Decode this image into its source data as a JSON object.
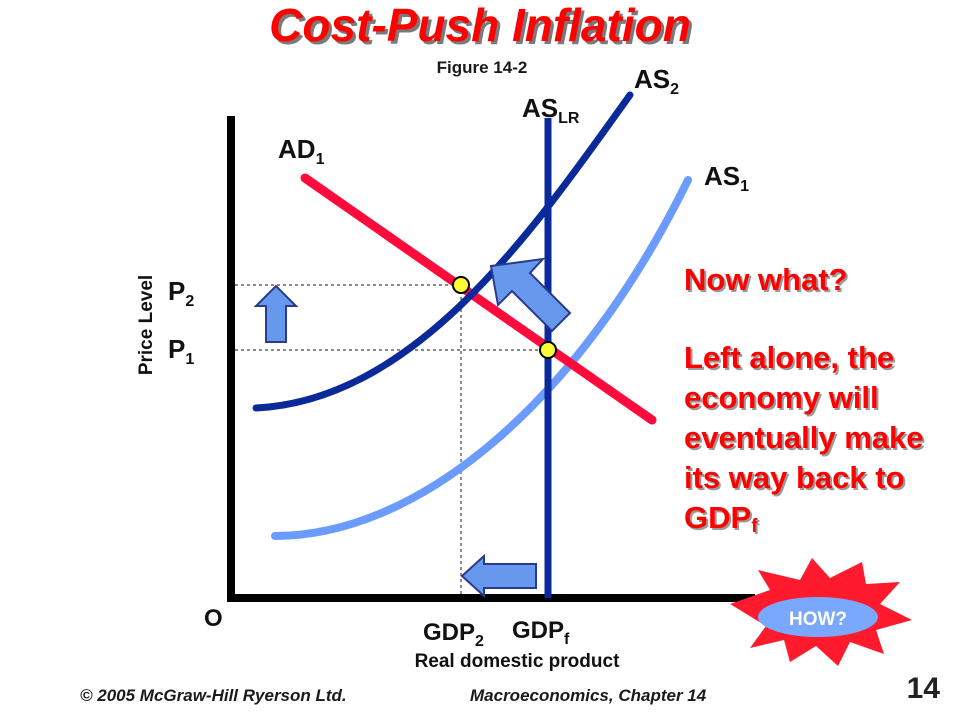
{
  "slide": {
    "title": "Cost-Push Inflation",
    "figure_label": "Figure 14-2"
  },
  "axes": {
    "y_label": "Price Level",
    "x_label": "Real domestic product",
    "origin": "O"
  },
  "curves": {
    "ad1": {
      "base": "AD",
      "sub": "1",
      "color": "#ff0a3c"
    },
    "as1": {
      "base": "AS",
      "sub": "1",
      "color": "#6b9bff"
    },
    "as2": {
      "base": "AS",
      "sub": "2",
      "color": "#0a2a99"
    },
    "aslr": {
      "base": "AS",
      "sub": "LR",
      "color": "#0a2a99"
    }
  },
  "price_levels": {
    "p2": {
      "base": "P",
      "sub": "2"
    },
    "p1": {
      "base": "P",
      "sub": "1"
    }
  },
  "gdp_levels": {
    "gdp2": {
      "base": "GDP",
      "sub": "2"
    },
    "gdpf": {
      "base": "GDP",
      "sub": "f"
    }
  },
  "note": {
    "line1": "Now what?",
    "line2_main": "Left alone, the economy will eventually make its way back to GDP",
    "line2_sub": "f"
  },
  "burst": {
    "label": "HOW?",
    "color": "#ff1a2e"
  },
  "footer": {
    "copyright": "© 2005 McGraw-Hill Ryerson Ltd.",
    "course": "Macroeconomics, Chapter 14",
    "page": "14"
  },
  "colors": {
    "accent": "#ff0000",
    "arrow_fill": "#6699ee",
    "point": "#ffff33"
  }
}
